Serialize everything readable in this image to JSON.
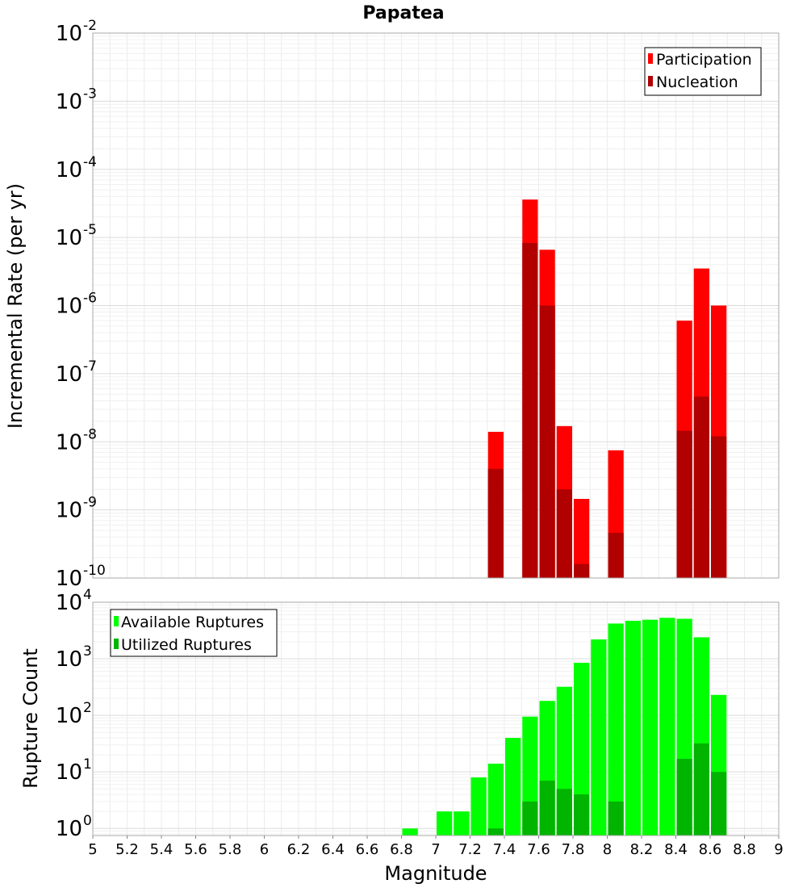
{
  "chart_data": [
    {
      "type": "bar",
      "title": "Papatea",
      "xlabel": "",
      "ylabel": "Incremental Rate (per yr)",
      "yscale": "log",
      "ylim": [
        1e-10,
        0.01
      ],
      "xlim": [
        5,
        9
      ],
      "bar_width": 0.1,
      "grid": true,
      "legend_position": "top-right",
      "y_ticks": [
        {
          "base": "10",
          "exp": "-2"
        },
        {
          "base": "10",
          "exp": "-3"
        },
        {
          "base": "10",
          "exp": "-4"
        },
        {
          "base": "10",
          "exp": "-5"
        },
        {
          "base": "10",
          "exp": "-6"
        },
        {
          "base": "10",
          "exp": "-7"
        },
        {
          "base": "10",
          "exp": "-8"
        },
        {
          "base": "10",
          "exp": "-9"
        },
        {
          "base": "10",
          "exp": "-10"
        }
      ],
      "series": [
        {
          "name": "Participation",
          "color": "#ff0000",
          "x": [
            7.35,
            7.55,
            7.65,
            7.75,
            7.85,
            8.05,
            8.45,
            8.55,
            8.65
          ],
          "values": [
            1.4e-08,
            3.6e-05,
            6.6e-06,
            1.7e-08,
            1.45e-09,
            7.5e-09,
            6e-07,
            3.5e-06,
            1e-06
          ]
        },
        {
          "name": "Nucleation",
          "color": "#b00000",
          "x": [
            7.35,
            7.55,
            7.65,
            7.75,
            7.85,
            8.05,
            8.45,
            8.55,
            8.65
          ],
          "values": [
            4e-09,
            8.3e-06,
            1e-06,
            2e-09,
            1.6e-10,
            4.6e-10,
            1.45e-08,
            4.6e-08,
            1.2e-08
          ]
        }
      ]
    },
    {
      "type": "bar",
      "title": "",
      "xlabel": "Magnitude",
      "ylabel": "Rupture Count",
      "yscale": "log",
      "ylim": [
        0.75,
        10000
      ],
      "xlim": [
        5,
        9
      ],
      "bar_width": 0.1,
      "grid": true,
      "legend_position": "top-left",
      "x_ticks": [
        "5",
        "5.2",
        "5.4",
        "5.6",
        "5.8",
        "6",
        "6.2",
        "6.4",
        "6.6",
        "6.8",
        "7",
        "7.2",
        "7.4",
        "7.6",
        "7.8",
        "8",
        "8.2",
        "8.4",
        "8.6",
        "8.8",
        "9"
      ],
      "y_ticks": [
        {
          "base": "10",
          "exp": "4"
        },
        {
          "base": "10",
          "exp": "3"
        },
        {
          "base": "10",
          "exp": "2"
        },
        {
          "base": "10",
          "exp": "1"
        },
        {
          "base": "10",
          "exp": "0"
        }
      ],
      "series": [
        {
          "name": "Available Ruptures",
          "color": "#00ff00",
          "x": [
            6.85,
            7.05,
            7.15,
            7.25,
            7.35,
            7.45,
            7.55,
            7.65,
            7.75,
            7.85,
            7.95,
            8.05,
            8.15,
            8.25,
            8.35,
            8.45,
            8.55,
            8.65
          ],
          "values": [
            1,
            2,
            2,
            8,
            14,
            40,
            95,
            180,
            320,
            850,
            2200,
            4200,
            4700,
            4900,
            5300,
            5100,
            2400,
            230
          ]
        },
        {
          "name": "Utilized Ruptures",
          "color": "#00b400",
          "x": [
            7.35,
            7.55,
            7.65,
            7.75,
            7.85,
            8.05,
            8.45,
            8.55,
            8.65
          ],
          "values": [
            1,
            3,
            7,
            5,
            4,
            3,
            17,
            32,
            10
          ]
        }
      ]
    }
  ]
}
